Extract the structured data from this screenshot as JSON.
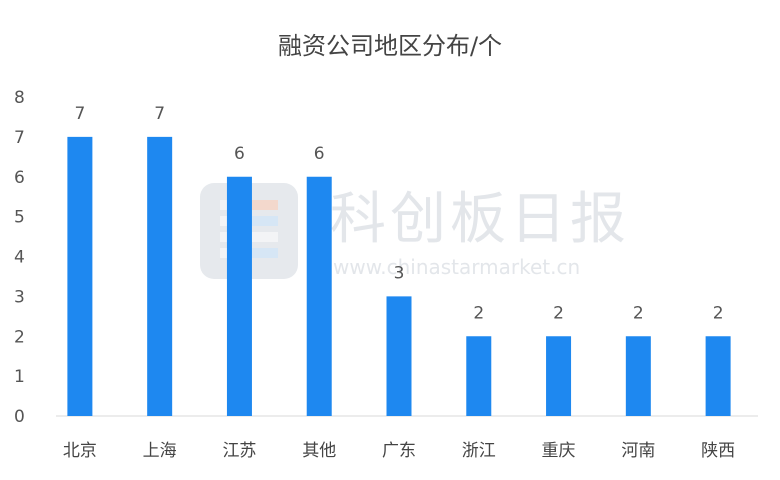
{
  "chart_data": {
    "type": "bar",
    "title": "融资公司地区分布/个",
    "categories": [
      "北京",
      "上海",
      "江苏",
      "其他",
      "广东",
      "浙江",
      "重庆",
      "河南",
      "陕西"
    ],
    "values": [
      7,
      7,
      6,
      6,
      3,
      2,
      2,
      2,
      2
    ],
    "ylim": [
      0,
      8
    ],
    "yticks": [
      0,
      1,
      2,
      3,
      4,
      5,
      6,
      7,
      8
    ],
    "xlabel": "",
    "ylabel": "",
    "grid": false,
    "bar_color": "#1e88f0",
    "data_labels": true
  },
  "watermark": {
    "text": "科创板日报",
    "url": "www.chinastarmarket.cn",
    "icon": "logo-tile-icon"
  }
}
